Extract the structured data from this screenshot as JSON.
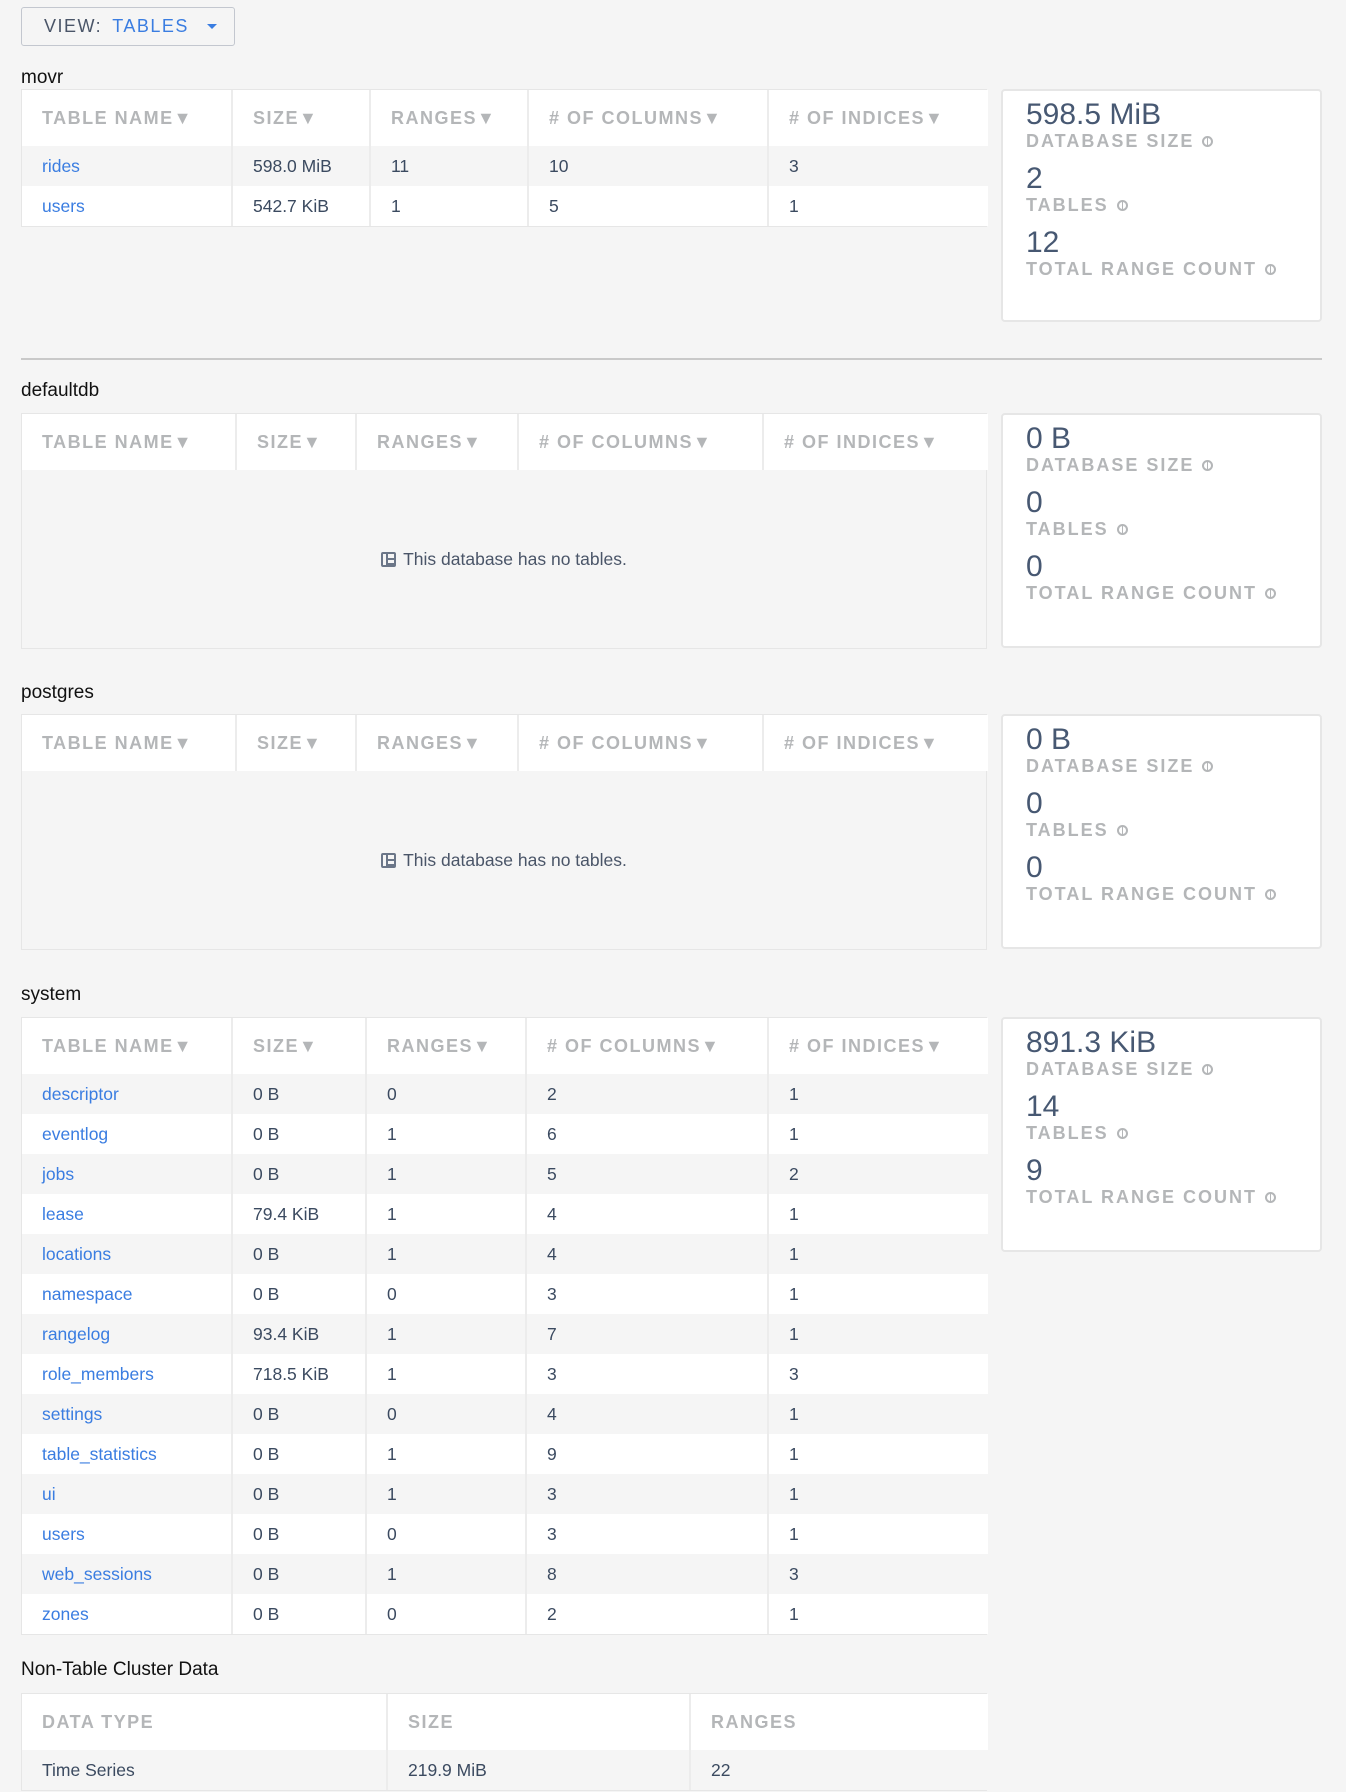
{
  "view_selector": {
    "label": "VIEW:",
    "value": "TABLES",
    "icon": "caret-down-icon"
  },
  "table_headers": [
    "TABLE NAME▼",
    "SIZE▼",
    "RANGES▼",
    "# OF COLUMNS▼",
    "# OF INDICES▼"
  ],
  "stat_labels": {
    "size": "DATABASE SIZE",
    "tables": "TABLES",
    "ranges": "TOTAL RANGE COUNT"
  },
  "empty_message": "This database has no tables.",
  "databases": [
    {
      "name": "movr",
      "rows": [
        [
          "rides",
          "598.0 MiB",
          "11",
          "10",
          "3"
        ],
        [
          "users",
          "542.7 KiB",
          "1",
          "5",
          "1"
        ]
      ],
      "stats": {
        "size": "598.5 MiB",
        "tables": "2",
        "ranges": "12"
      }
    },
    {
      "name": "defaultdb",
      "rows": [],
      "stats": {
        "size": "0 B",
        "tables": "0",
        "ranges": "0"
      }
    },
    {
      "name": "postgres",
      "rows": [],
      "stats": {
        "size": "0 B",
        "tables": "0",
        "ranges": "0"
      }
    },
    {
      "name": "system",
      "rows": [
        [
          "descriptor",
          "0 B",
          "0",
          "2",
          "1"
        ],
        [
          "eventlog",
          "0 B",
          "1",
          "6",
          "1"
        ],
        [
          "jobs",
          "0 B",
          "1",
          "5",
          "2"
        ],
        [
          "lease",
          "79.4 KiB",
          "1",
          "4",
          "1"
        ],
        [
          "locations",
          "0 B",
          "1",
          "4",
          "1"
        ],
        [
          "namespace",
          "0 B",
          "0",
          "3",
          "1"
        ],
        [
          "rangelog",
          "93.4 KiB",
          "1",
          "7",
          "1"
        ],
        [
          "role_members",
          "718.5 KiB",
          "1",
          "3",
          "3"
        ],
        [
          "settings",
          "0 B",
          "0",
          "4",
          "1"
        ],
        [
          "table_statistics",
          "0 B",
          "1",
          "9",
          "1"
        ],
        [
          "ui",
          "0 B",
          "1",
          "3",
          "1"
        ],
        [
          "users",
          "0 B",
          "0",
          "3",
          "1"
        ],
        [
          "web_sessions",
          "0 B",
          "1",
          "8",
          "3"
        ],
        [
          "zones",
          "0 B",
          "0",
          "2",
          "1"
        ]
      ],
      "stats": {
        "size": "891.3 KiB",
        "tables": "14",
        "ranges": "9"
      }
    }
  ],
  "non_table": {
    "title": "Non-Table Cluster Data",
    "headers": [
      "DATA TYPE",
      "SIZE",
      "RANGES"
    ],
    "rows": [
      [
        "Time Series",
        "219.9 MiB",
        "22"
      ]
    ]
  },
  "colors": {
    "link": "#3a7de1",
    "stat_value": "#475872",
    "header_text": "#b4b6b8"
  }
}
